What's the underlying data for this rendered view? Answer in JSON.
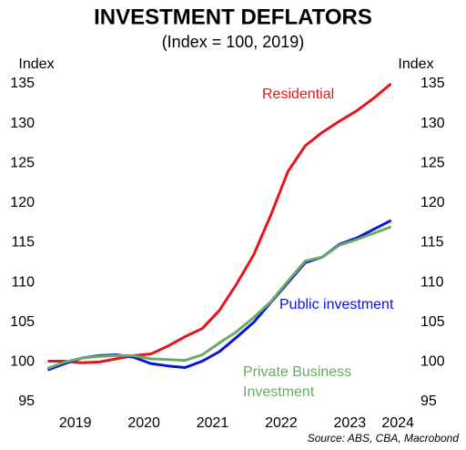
{
  "chart_data": {
    "type": "line",
    "title": "INVESTMENT DEFLATORS",
    "subtitle": "(Index = 100, 2019)",
    "y_label": "Index",
    "y2_label": "Index",
    "source": "Source: ABS, CBA, Macrobond",
    "x": [
      2019,
      2019.25,
      2019.5,
      2019.75,
      2020,
      2020.25,
      2020.5,
      2020.75,
      2021,
      2021.25,
      2021.5,
      2021.75,
      2022,
      2022.25,
      2022.5,
      2022.75,
      2023,
      2023.25,
      2023.5,
      2023.75,
      2024
    ],
    "series": [
      {
        "name": "Residential",
        "color": "#e8141a",
        "values": [
          100.1,
          100.1,
          99.9,
          100,
          100.4,
          100.8,
          101,
          102,
          103.2,
          104.2,
          106.5,
          109.8,
          113.5,
          118.5,
          124,
          127.2,
          128.9,
          130.3,
          131.6,
          133.2,
          135.0
        ]
      },
      {
        "name": "Public investment",
        "color": "#0a14d6",
        "values": [
          99,
          99.8,
          100.5,
          100.8,
          100.9,
          100.6,
          99.8,
          99.5,
          99.3,
          100.1,
          101.3,
          103.1,
          105,
          107.5,
          110,
          112.5,
          113.2,
          114.8,
          115.6,
          116.7,
          117.8
        ]
      },
      {
        "name": "Private Business Investment",
        "color": "#6aaa64",
        "values": [
          99.2,
          100,
          100.5,
          100.7,
          100.8,
          100.8,
          100.4,
          100.3,
          100.2,
          100.9,
          102.4,
          103.8,
          105.6,
          107.6,
          110.2,
          112.7,
          113.2,
          114.7,
          115.4,
          116.2,
          117.0
        ]
      }
    ],
    "xlim": [
      2018.9,
      2024.43
    ],
    "xticks": [
      {
        "value": 2019.4,
        "label": "2019"
      },
      {
        "value": 2020.4,
        "label": "2020"
      },
      {
        "value": 2021.4,
        "label": "2021"
      },
      {
        "value": 2022.4,
        "label": "2022"
      },
      {
        "value": 2023.4,
        "label": "2023"
      },
      {
        "value": 2024.1,
        "label": "2024"
      }
    ],
    "ylim": [
      95,
      135
    ],
    "yticks": [
      95,
      100,
      105,
      110,
      115,
      120,
      125,
      130,
      135
    ],
    "grid": false
  }
}
